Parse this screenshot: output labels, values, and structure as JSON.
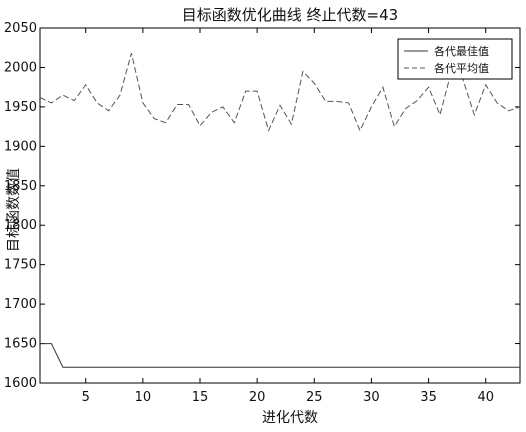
{
  "chart_data": {
    "type": "line",
    "title": "目标函数优化曲线 终止代数=43",
    "xlabel": "进化代数",
    "ylabel": "目标函数数值",
    "xlim": [
      1,
      43
    ],
    "ylim": [
      1600,
      2050
    ],
    "xticks": [
      5,
      10,
      15,
      20,
      25,
      30,
      35,
      40
    ],
    "yticks": [
      1600,
      1650,
      1700,
      1750,
      1800,
      1850,
      1900,
      1950,
      2000,
      2050
    ],
    "grid": false,
    "legend_position": "top-right",
    "colors": {
      "best": "#333333",
      "mean": "#555555"
    },
    "series": [
      {
        "name": "各代最佳值",
        "style": "solid",
        "x": [
          1,
          2,
          3,
          4,
          5,
          6,
          7,
          8,
          9,
          10,
          11,
          12,
          13,
          14,
          15,
          16,
          17,
          18,
          19,
          20,
          21,
          22,
          23,
          24,
          25,
          26,
          27,
          28,
          29,
          30,
          31,
          32,
          33,
          34,
          35,
          36,
          37,
          38,
          39,
          40,
          41,
          42,
          43
        ],
        "values": [
          1650,
          1650,
          1620,
          1620,
          1620,
          1620,
          1620,
          1620,
          1620,
          1620,
          1620,
          1620,
          1620,
          1620,
          1620,
          1620,
          1620,
          1620,
          1620,
          1620,
          1620,
          1620,
          1620,
          1620,
          1620,
          1620,
          1620,
          1620,
          1620,
          1620,
          1620,
          1620,
          1620,
          1620,
          1620,
          1620,
          1620,
          1620,
          1620,
          1620,
          1620,
          1620,
          1620
        ]
      },
      {
        "name": "各代平均值",
        "style": "dashed",
        "x": [
          1,
          2,
          3,
          4,
          5,
          6,
          7,
          8,
          9,
          10,
          11,
          12,
          13,
          14,
          15,
          16,
          17,
          18,
          19,
          20,
          21,
          22,
          23,
          24,
          25,
          26,
          27,
          28,
          29,
          30,
          31,
          32,
          33,
          34,
          35,
          36,
          37,
          38,
          39,
          40,
          41,
          42,
          43
        ],
        "values": [
          1962,
          1955,
          1965,
          1958,
          1978,
          1955,
          1945,
          1965,
          2018,
          1955,
          1935,
          1930,
          1953,
          1953,
          1926,
          1943,
          1950,
          1930,
          1970,
          1970,
          1920,
          1952,
          1928,
          1995,
          1980,
          1957,
          1957,
          1955,
          1920,
          1950,
          1975,
          1925,
          1948,
          1958,
          1975,
          1940,
          1995,
          1985,
          1940,
          1978,
          1955,
          1945,
          1950
        ]
      }
    ]
  }
}
